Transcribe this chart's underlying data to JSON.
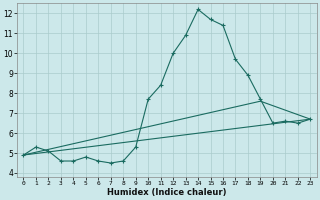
{
  "xlabel": "Humidex (Indice chaleur)",
  "ylabel": "",
  "bg_color": "#cce8ea",
  "line_color": "#1a6b60",
  "grid_color": "#aacccc",
  "xlim": [
    -0.5,
    23.5
  ],
  "ylim": [
    3.8,
    12.5
  ],
  "xticks": [
    0,
    1,
    2,
    3,
    4,
    5,
    6,
    7,
    8,
    9,
    10,
    11,
    12,
    13,
    14,
    15,
    16,
    17,
    18,
    19,
    20,
    21,
    22,
    23
  ],
  "yticks": [
    4,
    5,
    6,
    7,
    8,
    9,
    10,
    11,
    12
  ],
  "series": [
    {
      "x": [
        0,
        1,
        2,
        3,
        4,
        5,
        6,
        7,
        8,
        9,
        10,
        11,
        12,
        13,
        14,
        15,
        16,
        17,
        18,
        19,
        20,
        21,
        22,
        23
      ],
      "y": [
        4.9,
        5.3,
        5.1,
        4.6,
        4.6,
        4.8,
        4.6,
        4.5,
        4.6,
        5.3,
        7.7,
        8.4,
        10.0,
        10.9,
        12.2,
        11.7,
        11.4,
        9.7,
        8.9,
        7.7,
        6.5,
        6.6,
        6.5,
        6.7
      ],
      "has_markers": true
    },
    {
      "x": [
        0,
        23
      ],
      "y": [
        4.9,
        6.7
      ],
      "has_markers": false
    },
    {
      "x": [
        0,
        19,
        23
      ],
      "y": [
        4.9,
        7.6,
        6.7
      ],
      "has_markers": false
    }
  ]
}
